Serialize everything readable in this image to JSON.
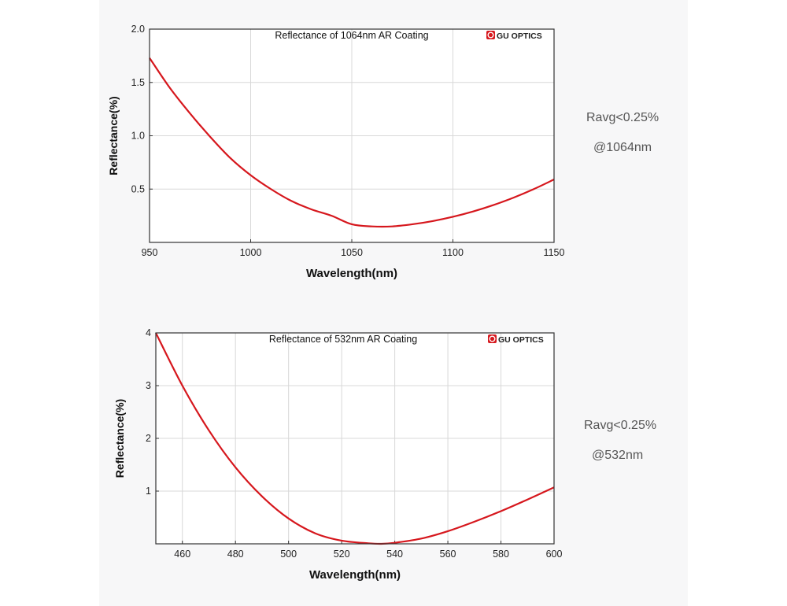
{
  "colors": {
    "curve": "#d6171d",
    "grid": "#d8d8d8",
    "frame": "#333333",
    "panel": "#f7f7f8",
    "note_text": "#555555"
  },
  "chart_data": [
    {
      "type": "line",
      "title": "Reflectance of 1064nm AR Coating",
      "logo_text": "GU OPTICS",
      "logo_icon": "gu-optics-logo-icon",
      "xlabel": "Wavelength(nm)",
      "ylabel": "Reflectance(%)",
      "xlim": [
        950,
        1150
      ],
      "ylim": [
        0,
        2.0
      ],
      "x_ticks": [
        "950",
        "1000",
        "1050",
        "1100",
        "1150"
      ],
      "y_ticks": [
        "0.5",
        "1.0",
        "1.5",
        "2.0"
      ],
      "grid": true,
      "series": [
        {
          "x": [
            950,
            960,
            970,
            980,
            990,
            1000,
            1010,
            1020,
            1030,
            1040,
            1050,
            1060,
            1070,
            1080,
            1090,
            1100,
            1110,
            1120,
            1130,
            1140,
            1150
          ],
          "values": [
            1.73,
            1.45,
            1.21,
            0.99,
            0.79,
            0.63,
            0.5,
            0.39,
            0.31,
            0.25,
            0.17,
            0.15,
            0.15,
            0.17,
            0.2,
            0.24,
            0.29,
            0.35,
            0.42,
            0.5,
            0.59
          ]
        }
      ]
    },
    {
      "type": "line",
      "title": "Reflectance of 532nm AR Coating",
      "logo_text": "GU OPTICS",
      "logo_icon": "gu-optics-logo-icon",
      "xlabel": "Wavelength(nm)",
      "ylabel": "Reflectance(%)",
      "xlim": [
        450,
        600
      ],
      "ylim": [
        0,
        4
      ],
      "x_ticks": [
        "460",
        "480",
        "500",
        "520",
        "540",
        "560",
        "580",
        "600"
      ],
      "y_ticks": [
        "1",
        "2",
        "3",
        "4"
      ],
      "grid": true,
      "series": [
        {
          "x": [
            450,
            460,
            470,
            480,
            490,
            500,
            510,
            520,
            530,
            535,
            540,
            550,
            560,
            570,
            580,
            590,
            600
          ],
          "values": [
            4.0,
            3.0,
            2.15,
            1.45,
            0.9,
            0.48,
            0.2,
            0.06,
            0.01,
            0.0,
            0.02,
            0.1,
            0.24,
            0.42,
            0.62,
            0.84,
            1.07
          ]
        }
      ]
    }
  ],
  "annotations": [
    {
      "line1": "Ravg<0.25%",
      "line2": "@1064nm"
    },
    {
      "line1": "Ravg<0.25%",
      "line2": "@532nm"
    }
  ]
}
